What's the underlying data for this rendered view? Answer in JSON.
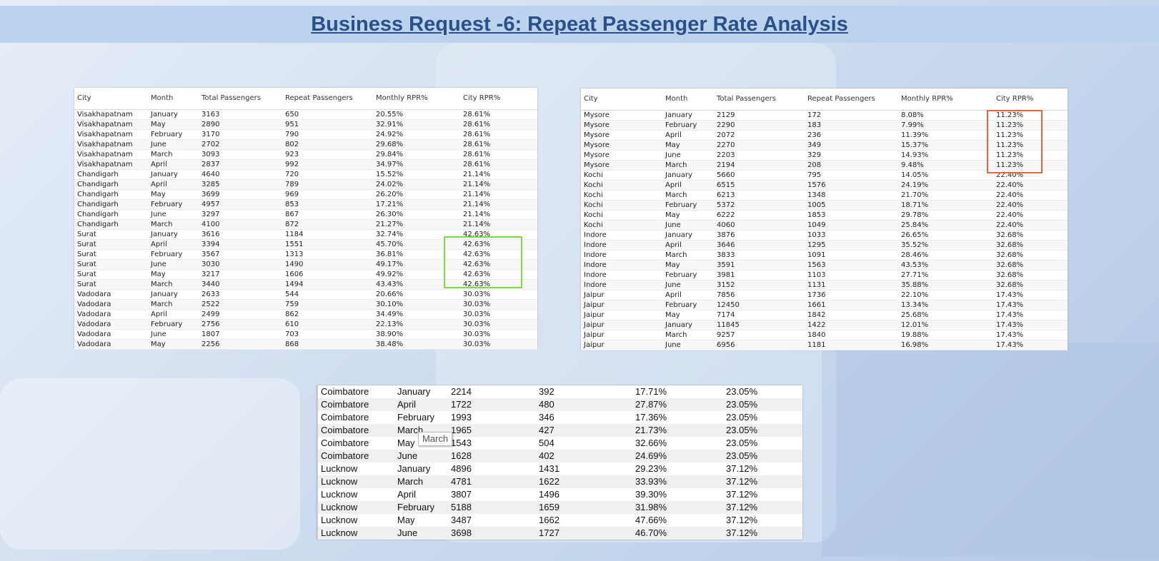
{
  "title": "Business Request -6: Repeat Passenger Rate Analysis",
  "headers": [
    "City",
    "Month",
    "Total Passengers",
    "Repeat Passengers",
    "Monthly RPR%",
    "City RPR%"
  ],
  "table1": [
    [
      "Visakhapatnam",
      "January",
      "3163",
      "650",
      "20.55%",
      "28.61%"
    ],
    [
      "Visakhapatnam",
      "May",
      "2890",
      "951",
      "32.91%",
      "28.61%"
    ],
    [
      "Visakhapatnam",
      "February",
      "3170",
      "790",
      "24.92%",
      "28.61%"
    ],
    [
      "Visakhapatnam",
      "June",
      "2702",
      "802",
      "29.68%",
      "28.61%"
    ],
    [
      "Visakhapatnam",
      "March",
      "3093",
      "923",
      "29.84%",
      "28.61%"
    ],
    [
      "Visakhapatnam",
      "April",
      "2837",
      "992",
      "34.97%",
      "28.61%"
    ],
    [
      "Chandigarh",
      "January",
      "4640",
      "720",
      "15.52%",
      "21.14%"
    ],
    [
      "Chandigarh",
      "April",
      "3285",
      "789",
      "24.02%",
      "21.14%"
    ],
    [
      "Chandigarh",
      "May",
      "3699",
      "969",
      "26.20%",
      "21.14%"
    ],
    [
      "Chandigarh",
      "February",
      "4957",
      "853",
      "17.21%",
      "21.14%"
    ],
    [
      "Chandigarh",
      "June",
      "3297",
      "867",
      "26.30%",
      "21.14%"
    ],
    [
      "Chandigarh",
      "March",
      "4100",
      "872",
      "21.27%",
      "21.14%"
    ],
    [
      "Surat",
      "January",
      "3616",
      "1184",
      "32.74%",
      "42.63%"
    ],
    [
      "Surat",
      "April",
      "3394",
      "1551",
      "45.70%",
      "42.63%"
    ],
    [
      "Surat",
      "February",
      "3567",
      "1313",
      "36.81%",
      "42.63%"
    ],
    [
      "Surat",
      "June",
      "3030",
      "1490",
      "49.17%",
      "42.63%"
    ],
    [
      "Surat",
      "May",
      "3217",
      "1606",
      "49.92%",
      "42.63%"
    ],
    [
      "Surat",
      "March",
      "3440",
      "1494",
      "43.43%",
      "42.63%"
    ],
    [
      "Vadodara",
      "January",
      "2633",
      "544",
      "20.66%",
      "30.03%"
    ],
    [
      "Vadodara",
      "March",
      "2522",
      "759",
      "30.10%",
      "30.03%"
    ],
    [
      "Vadodara",
      "April",
      "2499",
      "862",
      "34.49%",
      "30.03%"
    ],
    [
      "Vadodara",
      "February",
      "2756",
      "610",
      "22.13%",
      "30.03%"
    ],
    [
      "Vadodara",
      "June",
      "1807",
      "703",
      "38.90%",
      "30.03%"
    ],
    [
      "Vadodara",
      "May",
      "2256",
      "868",
      "38.48%",
      "30.03%"
    ]
  ],
  "table2": [
    [
      "Mysore",
      "January",
      "2129",
      "172",
      "8.08%",
      "11.23%"
    ],
    [
      "Mysore",
      "February",
      "2290",
      "183",
      "7.99%",
      "11.23%"
    ],
    [
      "Mysore",
      "April",
      "2072",
      "236",
      "11.39%",
      "11.23%"
    ],
    [
      "Mysore",
      "May",
      "2270",
      "349",
      "15.37%",
      "11.23%"
    ],
    [
      "Mysore",
      "June",
      "2203",
      "329",
      "14.93%",
      "11.23%"
    ],
    [
      "Mysore",
      "March",
      "2194",
      "208",
      "9.48%",
      "11.23%"
    ],
    [
      "Kochi",
      "January",
      "5660",
      "795",
      "14.05%",
      "22.40%"
    ],
    [
      "Kochi",
      "April",
      "6515",
      "1576",
      "24.19%",
      "22.40%"
    ],
    [
      "Kochi",
      "March",
      "6213",
      "1348",
      "21.70%",
      "22.40%"
    ],
    [
      "Kochi",
      "February",
      "5372",
      "1005",
      "18.71%",
      "22.40%"
    ],
    [
      "Kochi",
      "May",
      "6222",
      "1853",
      "29.78%",
      "22.40%"
    ],
    [
      "Kochi",
      "June",
      "4060",
      "1049",
      "25.84%",
      "22.40%"
    ],
    [
      "Indore",
      "January",
      "3876",
      "1033",
      "26.65%",
      "32.68%"
    ],
    [
      "Indore",
      "April",
      "3646",
      "1295",
      "35.52%",
      "32.68%"
    ],
    [
      "Indore",
      "March",
      "3833",
      "1091",
      "28.46%",
      "32.68%"
    ],
    [
      "Indore",
      "May",
      "3591",
      "1563",
      "43.53%",
      "32.68%"
    ],
    [
      "Indore",
      "February",
      "3981",
      "1103",
      "27.71%",
      "32.68%"
    ],
    [
      "Indore",
      "June",
      "3152",
      "1131",
      "35.88%",
      "32.68%"
    ],
    [
      "Jaipur",
      "April",
      "7856",
      "1736",
      "22.10%",
      "17.43%"
    ],
    [
      "Jaipur",
      "February",
      "12450",
      "1661",
      "13.34%",
      "17.43%"
    ],
    [
      "Jaipur",
      "May",
      "7174",
      "1842",
      "25.68%",
      "17.43%"
    ],
    [
      "Jaipur",
      "January",
      "11845",
      "1422",
      "12.01%",
      "17.43%"
    ],
    [
      "Jaipur",
      "March",
      "9257",
      "1840",
      "19.88%",
      "17.43%"
    ],
    [
      "Jaipur",
      "June",
      "6956",
      "1181",
      "16.98%",
      "17.43%"
    ]
  ],
  "table3": [
    [
      "Coimbatore",
      "January",
      "2214",
      "392",
      "17.71%",
      "23.05%"
    ],
    [
      "Coimbatore",
      "April",
      "1722",
      "480",
      "27.87%",
      "23.05%"
    ],
    [
      "Coimbatore",
      "February",
      "1993",
      "346",
      "17.36%",
      "23.05%"
    ],
    [
      "Coimbatore",
      "March",
      "1965",
      "427",
      "21.73%",
      "23.05%"
    ],
    [
      "Coimbatore",
      "May",
      "1543",
      "504",
      "32.66%",
      "23.05%"
    ],
    [
      "Coimbatore",
      "June",
      "1628",
      "402",
      "24.69%",
      "23.05%"
    ],
    [
      "Lucknow",
      "January",
      "4896",
      "1431",
      "29.23%",
      "37.12%"
    ],
    [
      "Lucknow",
      "March",
      "4781",
      "1622",
      "33.93%",
      "37.12%"
    ],
    [
      "Lucknow",
      "April",
      "3807",
      "1496",
      "39.30%",
      "37.12%"
    ],
    [
      "Lucknow",
      "February",
      "5188",
      "1659",
      "31.98%",
      "37.12%"
    ],
    [
      "Lucknow",
      "May",
      "3487",
      "1662",
      "47.66%",
      "37.12%"
    ],
    [
      "Lucknow",
      "June",
      "3698",
      "1727",
      "46.70%",
      "37.12%"
    ]
  ],
  "tooltip": "March",
  "highlight_colors": {
    "green": "#7ddc3a",
    "orange": "#e8623a"
  }
}
